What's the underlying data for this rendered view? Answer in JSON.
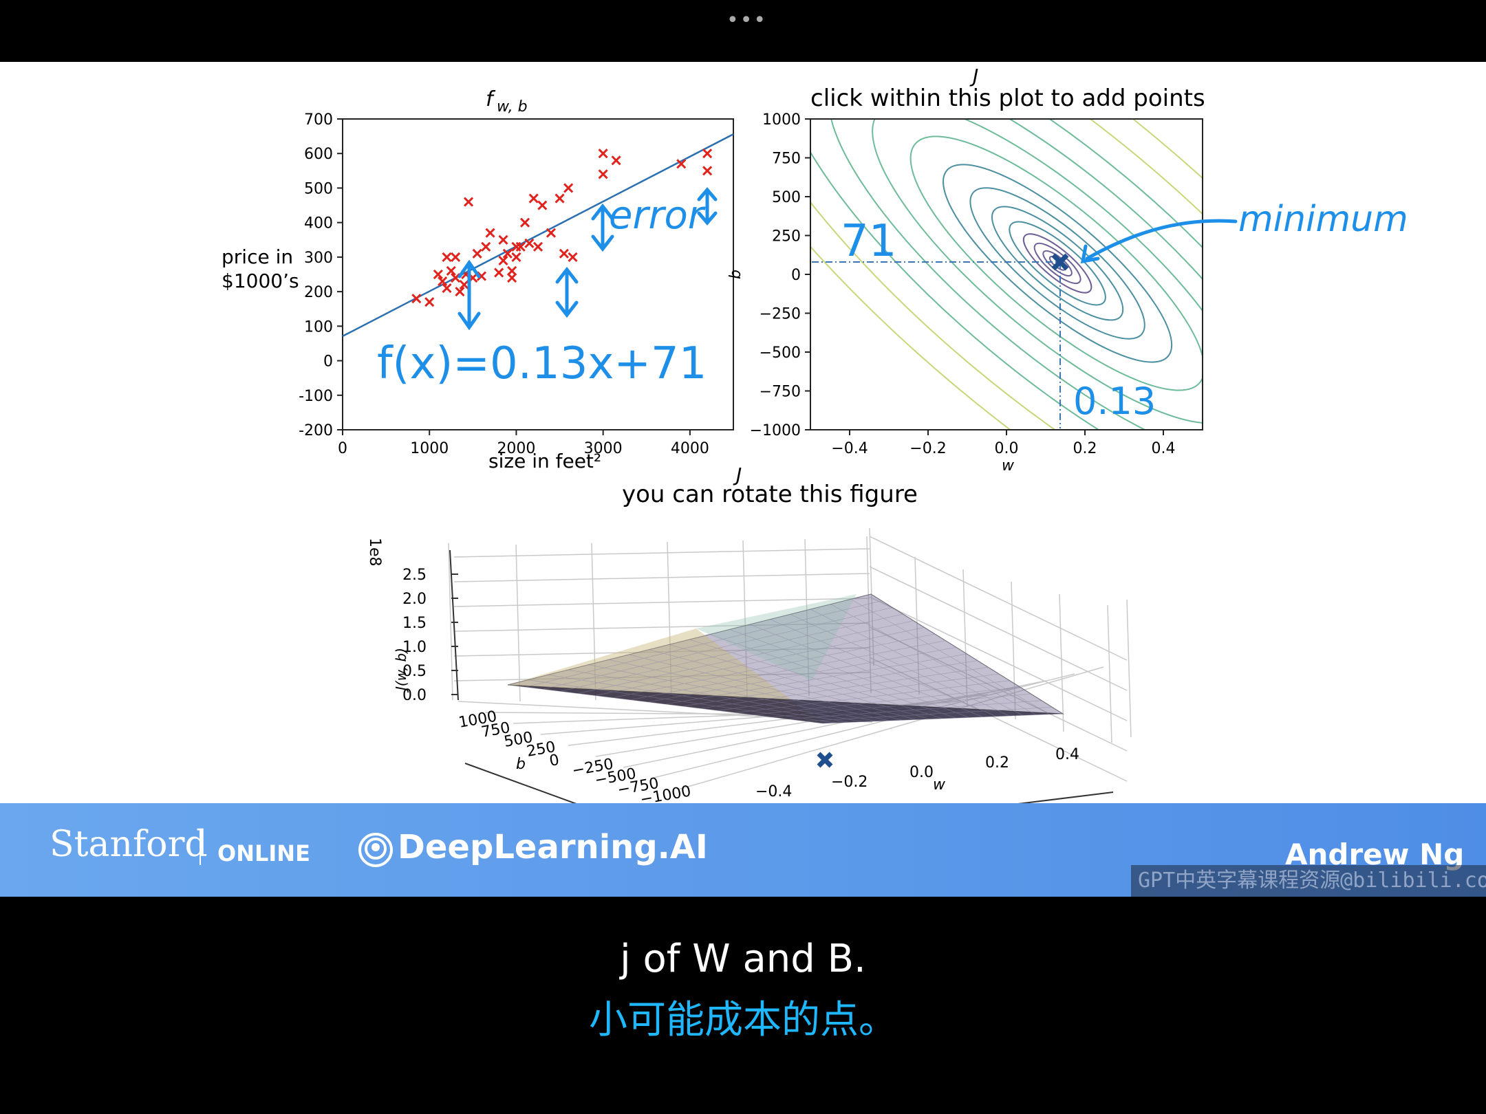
{
  "window": {
    "menu_icon": "more-horizontal-icon",
    "dots": "•••"
  },
  "plot1": {
    "title": "f",
    "title_sub": "w, b",
    "ylabel_line1": "price in",
    "ylabel_line2": "$1000’s",
    "xlabel": "size in feet²",
    "yticks": [
      "700",
      "600",
      "500",
      "400",
      "300",
      "200",
      "100",
      "0",
      "-100",
      "-200"
    ],
    "xticks": [
      "0",
      "1000",
      "2000",
      "3000",
      "4000"
    ],
    "annotation_error": "error",
    "annotation_formula": "f(x)=0.13x+71"
  },
  "plot2": {
    "title_small": "J",
    "title": "click within this plot to add points",
    "ylabel": "b",
    "xlabel": "w",
    "yticks": [
      "1000",
      "750",
      "500",
      "250",
      "0",
      "−250",
      "−500",
      "−750",
      "−1000"
    ],
    "xticks": [
      "−0.4",
      "−0.2",
      "0.0",
      "0.2",
      "0.4"
    ],
    "annotation_b": "71",
    "annotation_w": "0.13",
    "annotation_min": "minimum"
  },
  "plot3": {
    "title_small": "J",
    "title": "you can rotate this figure",
    "scale": "1e8",
    "zlabel": "J(w, b)",
    "zticks": [
      "2.5",
      "2.0",
      "1.5",
      "1.0",
      "0.5",
      "0.0"
    ],
    "bticks": [
      "1000",
      "750",
      "500",
      "250",
      "0",
      "−250",
      "−500",
      "−750",
      "−1000"
    ],
    "blabel": "b",
    "wticks": [
      "−0.4",
      "−0.2",
      "0.0",
      "0.2",
      "0.4"
    ],
    "wlabel": "w"
  },
  "chart_data": [
    {
      "type": "scatter",
      "title": "f w,b",
      "xlabel": "size in feet²",
      "ylabel": "price in $1000’s",
      "xlim": [
        0,
        4500
      ],
      "ylim": [
        -200,
        700
      ],
      "points": [
        [
          850,
          180
        ],
        [
          1000,
          170
        ],
        [
          1100,
          250
        ],
        [
          1150,
          230
        ],
        [
          1200,
          300
        ],
        [
          1200,
          210
        ],
        [
          1250,
          260
        ],
        [
          1300,
          240
        ],
        [
          1300,
          300
        ],
        [
          1350,
          200
        ],
        [
          1400,
          220
        ],
        [
          1420,
          250
        ],
        [
          1450,
          460
        ],
        [
          1500,
          240
        ],
        [
          1550,
          310
        ],
        [
          1600,
          245
        ],
        [
          1650,
          330
        ],
        [
          1700,
          370
        ],
        [
          1800,
          255
        ],
        [
          1850,
          290
        ],
        [
          1850,
          350
        ],
        [
          1900,
          310
        ],
        [
          1950,
          260
        ],
        [
          1950,
          240
        ],
        [
          2000,
          330
        ],
        [
          2000,
          300
        ],
        [
          2050,
          330
        ],
        [
          2100,
          400
        ],
        [
          2150,
          340
        ],
        [
          2200,
          470
        ],
        [
          2250,
          330
        ],
        [
          2300,
          450
        ],
        [
          2400,
          370
        ],
        [
          2500,
          470
        ],
        [
          2550,
          310
        ],
        [
          2600,
          500
        ],
        [
          2650,
          300
        ],
        [
          3000,
          600
        ],
        [
          3000,
          540
        ],
        [
          3150,
          580
        ],
        [
          3900,
          570
        ],
        [
          4200,
          600
        ],
        [
          4200,
          550
        ]
      ],
      "fit_line": {
        "w": 0.13,
        "b": 71
      }
    },
    {
      "type": "contour",
      "title": "click within this plot to add points",
      "xlabel": "w",
      "ylabel": "b",
      "xlim": [
        -0.5,
        0.5
      ],
      "ylim": [
        -1000,
        1000
      ],
      "minimum": {
        "w": 0.13,
        "b": 71
      }
    },
    {
      "type": "surface",
      "title": "you can rotate this figure",
      "zlabel": "J(w, b)",
      "zscale": "1e8",
      "zlim": [
        0,
        2.5
      ],
      "minimum": {
        "w": 0.13,
        "b": 71
      }
    }
  ],
  "footer": {
    "stanford": "Stanford",
    "online": "ONLINE",
    "deeplearning": "DeepLearning.AI",
    "presenter": "Andrew Ng",
    "watermark": "GPT中英字幕课程资源@bilibili.com"
  },
  "subtitles": {
    "english": "j of W and B.",
    "chinese": "小可能成本的点。"
  },
  "colors": {
    "marker": "#e0231c",
    "line": "#2a6fb0",
    "annotation": "#1e8fe8",
    "footer": "#5a97ea",
    "subtitle_zh": "#1fb8ff"
  }
}
